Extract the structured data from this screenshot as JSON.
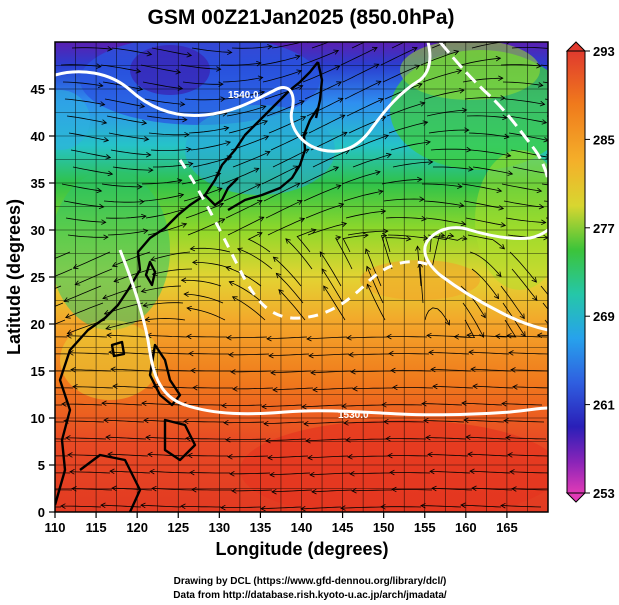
{
  "title": "GSM 00Z21Jan2025 (850.0hPa)",
  "xlabel": "Longitude (degrees)",
  "ylabel": "Latitude  (degrees)",
  "x_ticks": [
    "110",
    "115",
    "120",
    "125",
    "130",
    "135",
    "140",
    "145",
    "150",
    "155",
    "160",
    "165"
  ],
  "y_ticks": [
    "0",
    "5",
    "10",
    "15",
    "20",
    "25",
    "30",
    "35",
    "40",
    "45"
  ],
  "colorbar": {
    "ticks": [
      "293",
      "285",
      "277",
      "269",
      "261",
      "253"
    ],
    "colors": [
      "#e03a2e",
      "#f07a1c",
      "#f4a52a",
      "#efd335",
      "#9bdc2a",
      "#36c43a",
      "#25c7a0",
      "#27a9ec",
      "#2f5fe0",
      "#2a1fb8",
      "#8a24b8",
      "#e03ab6"
    ]
  },
  "contour_labels": [
    "1540.0",
    "1530.0"
  ],
  "credits": [
    "Drawing by DCL (https://www.gfd-dennou.org/library/dcl/)",
    "Data from http://database.rish.kyoto-u.ac.jp/arch/jmadata/"
  ],
  "chart_data": {
    "type": "heatmap",
    "title": "GSM 00Z21Jan2025 (850.0hPa)",
    "xlabel": "Longitude (degrees)",
    "ylabel": "Latitude  (degrees)",
    "xlim": [
      110,
      170
    ],
    "ylim": [
      0,
      50
    ],
    "field": "temperature (colour fill) with wind streamlines and white geopotential height contours",
    "colorbar_range": [
      253,
      293
    ],
    "colorbar_ticks": [
      293,
      285,
      277,
      269,
      261,
      253
    ],
    "contour_labels": [
      "1540.0",
      "1530.0"
    ],
    "grid": true
  }
}
